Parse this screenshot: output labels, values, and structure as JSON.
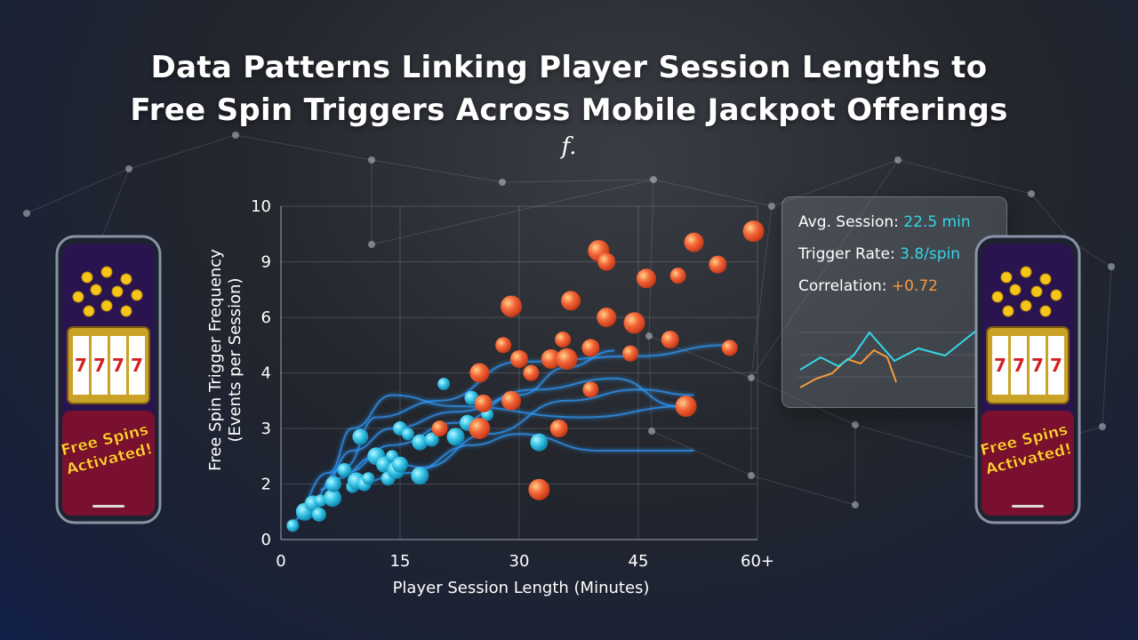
{
  "title_line1": "Data Patterns Linking Player Session Lengths to",
  "title_line2": "Free Spin Triggers Across Mobile Jackpot Offerings",
  "subtitle": "f.",
  "stats": {
    "avg_session_label": "Avg. Session:",
    "avg_session_value": "22.5 min",
    "trigger_rate_label": "Trigger Rate:",
    "trigger_rate_value": "3.8/spin",
    "correlation_label": "Correlation:",
    "correlation_value": "+0.72",
    "colors": {
      "cyan": "#35d6e6",
      "orange": "#f59a3a"
    }
  },
  "phones": {
    "left_banner_line1": "Free Spins",
    "left_banner_line2": "Activated!",
    "right_banner_line1": "Free Spins",
    "right_banner_line2": "Activated!",
    "reel_symbol": "7"
  },
  "chart_data": {
    "type": "scatter",
    "xlabel": "Player Session Length (Minutes)",
    "ylabel_line1": "Free Spin Trigger Frequency",
    "ylabel_line2": "(Events per Session)",
    "x_ticks": [
      "0",
      "15",
      "30",
      "45",
      "60+"
    ],
    "x_tick_values": [
      0,
      15,
      30,
      45,
      60
    ],
    "y_ticks": [
      "0",
      "2",
      "3",
      "4",
      "6",
      "9",
      "10"
    ],
    "y_tick_levels": [
      0,
      1,
      2,
      3,
      4,
      5,
      6
    ],
    "xlim": [
      0,
      60
    ],
    "ylim_levels": [
      0,
      6
    ],
    "grid": true,
    "series": [
      {
        "color": "#3cc8ea",
        "points": [
          [
            1.5,
            0.25
          ],
          [
            3,
            0.5
          ],
          [
            4,
            0.65
          ],
          [
            4.8,
            0.45
          ],
          [
            5,
            0.7
          ],
          [
            6.5,
            0.75
          ],
          [
            6.6,
            1.0
          ],
          [
            8,
            1.25
          ],
          [
            9,
            0.95
          ],
          [
            9.5,
            1.05
          ],
          [
            10,
            1.85
          ],
          [
            10.5,
            1.0
          ],
          [
            11,
            1.1
          ],
          [
            12,
            1.5
          ],
          [
            13,
            1.35
          ],
          [
            13.5,
            1.1
          ],
          [
            14,
            1.5
          ],
          [
            14.5,
            1.25
          ],
          [
            15,
            1.35
          ],
          [
            15,
            2.0
          ],
          [
            16,
            1.9
          ],
          [
            17.5,
            1.15
          ],
          [
            17.5,
            1.75
          ],
          [
            19,
            1.8
          ],
          [
            20.5,
            2.8
          ],
          [
            22,
            1.85
          ],
          [
            23.5,
            2.1
          ],
          [
            24,
            2.55
          ],
          [
            26,
            2.25
          ],
          [
            32.5,
            1.75
          ]
        ]
      },
      {
        "color": "#f4683a",
        "points": [
          [
            20,
            2.0
          ],
          [
            25,
            2.0
          ],
          [
            25,
            3.0
          ],
          [
            25.5,
            2.45
          ],
          [
            28,
            3.5
          ],
          [
            29,
            4.2
          ],
          [
            29,
            2.5
          ],
          [
            30,
            3.25
          ],
          [
            31.5,
            3.0
          ],
          [
            32.5,
            0.9
          ],
          [
            34,
            3.25
          ],
          [
            35,
            2.0
          ],
          [
            35.5,
            3.6
          ],
          [
            36,
            3.25
          ],
          [
            36.5,
            4.3
          ],
          [
            39,
            3.45
          ],
          [
            39,
            2.7
          ],
          [
            40,
            5.2
          ],
          [
            41,
            4.0
          ],
          [
            41,
            5.0
          ],
          [
            44,
            3.35
          ],
          [
            44.5,
            3.9
          ],
          [
            46,
            4.7
          ],
          [
            49,
            3.6
          ],
          [
            50,
            4.75
          ],
          [
            51,
            2.4
          ],
          [
            52,
            5.35
          ],
          [
            55,
            4.95
          ],
          [
            56.5,
            3.45
          ],
          [
            59.5,
            5.55
          ]
        ]
      }
    ]
  }
}
